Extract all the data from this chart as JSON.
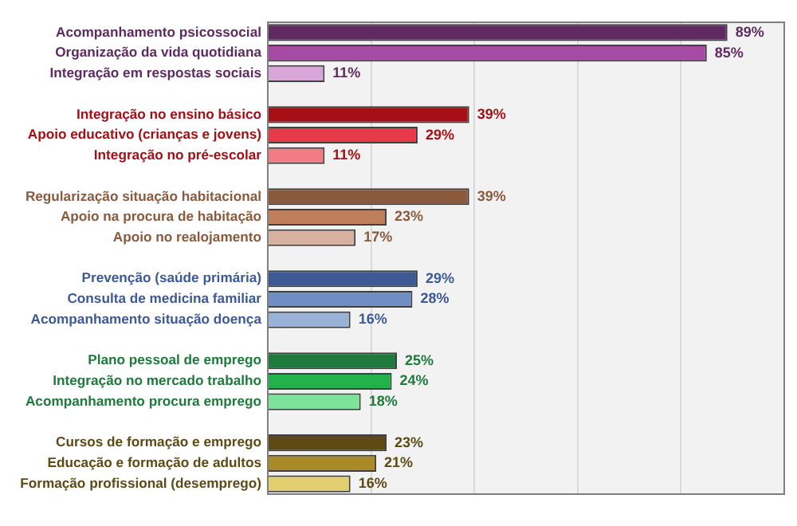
{
  "chart_data": {
    "type": "bar",
    "orientation": "horizontal",
    "categories": [
      "Acompanhamento psicossocial",
      "Organização da vida quotidiana",
      "Integração em respostas sociais",
      null,
      "Integração no ensino básico",
      "Apoio educativo (crianças e jovens)",
      "Integração no pré-escolar",
      null,
      "Regularização situação habitacional",
      "Apoio na procura de habitação",
      "Apoio no realojamento",
      null,
      "Prevenção (saúde primária)",
      "Consulta de medicina familiar",
      "Acompanhamento situação doença",
      null,
      "Plano pessoal de emprego",
      "Integração no mercado trabalho",
      "Acompanhamento procura emprego",
      null,
      "Cursos de formação e emprego",
      "Educação e formação de adultos",
      "Formação profissional (desemprego)"
    ],
    "values": [
      89,
      85,
      11,
      null,
      39,
      29,
      11,
      null,
      39,
      23,
      17,
      null,
      29,
      28,
      16,
      null,
      25,
      24,
      18,
      null,
      23,
      21,
      16
    ],
    "value_labels": [
      "89%",
      "85%",
      "11%",
      null,
      "39%",
      "29%",
      "11%",
      null,
      "39%",
      "23%",
      "17%",
      null,
      "29%",
      "28%",
      "16%",
      null,
      "25%",
      "24%",
      "18%",
      null,
      "23%",
      "21%",
      "16%"
    ],
    "colors": [
      "#5f2a62",
      "#a54aa5",
      "#d8a6d8",
      null,
      "#a50f15",
      "#e8394a",
      "#f27b86",
      null,
      "#8b5a3c",
      "#bf7f5d",
      "#d8b0a0",
      null,
      "#3d5a94",
      "#6f8fc4",
      "#9bb2d8",
      null,
      "#1e7b3c",
      "#22b24c",
      "#7ee39a",
      null,
      "#5e4a14",
      "#a88a26",
      "#e2cf70"
    ],
    "xlim": [
      0,
      100
    ],
    "xticks": [
      {
        "value": 0,
        "label": null
      },
      {
        "value": 20,
        "label": null
      },
      {
        "value": 40,
        "label": null
      },
      {
        "value": 60,
        "label": null
      },
      {
        "value": 80,
        "label": null
      },
      {
        "value": 100,
        "label": null
      }
    ],
    "grid": "x",
    "tick_labels": "y",
    "legend": false
  }
}
